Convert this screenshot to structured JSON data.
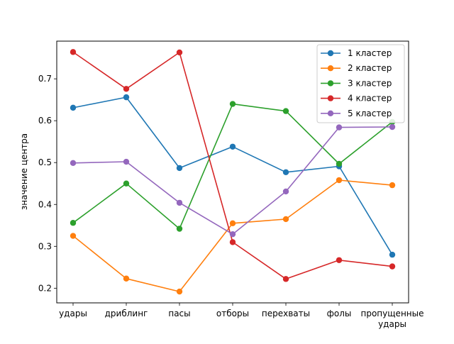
{
  "chart_data": {
    "type": "line",
    "title": "",
    "xlabel": "",
    "ylabel": "значение центра",
    "categories": [
      "удары",
      "дриблинг",
      "пасы",
      "отборы",
      "перехваты",
      "фолы",
      "пропущенные удары"
    ],
    "ylim": [
      0.165,
      0.79
    ],
    "yticks": [
      0.2,
      0.3,
      0.4,
      0.5,
      0.6,
      0.7
    ],
    "ytick_labels": [
      "0.2",
      "0.3",
      "0.4",
      "0.5",
      "0.6",
      "0.7"
    ],
    "grid": false,
    "legend_position": "top-right",
    "series": [
      {
        "name": "1 кластер",
        "color": "#1f77b4",
        "values": [
          0.631,
          0.656,
          0.487,
          0.538,
          0.477,
          0.491,
          0.28
        ]
      },
      {
        "name": "2 кластер",
        "color": "#ff7f0e",
        "values": [
          0.325,
          0.223,
          0.192,
          0.355,
          0.365,
          0.458,
          0.446
        ]
      },
      {
        "name": "3 кластер",
        "color": "#2ca02c",
        "values": [
          0.356,
          0.45,
          0.342,
          0.64,
          0.623,
          0.497,
          0.597
        ]
      },
      {
        "name": "4 кластер",
        "color": "#d62728",
        "values": [
          0.764,
          0.676,
          0.763,
          0.31,
          0.222,
          0.267,
          0.252
        ]
      },
      {
        "name": "5 кластер",
        "color": "#9467bd",
        "values": [
          0.499,
          0.502,
          0.404,
          0.329,
          0.431,
          0.584,
          0.585
        ]
      }
    ]
  }
}
